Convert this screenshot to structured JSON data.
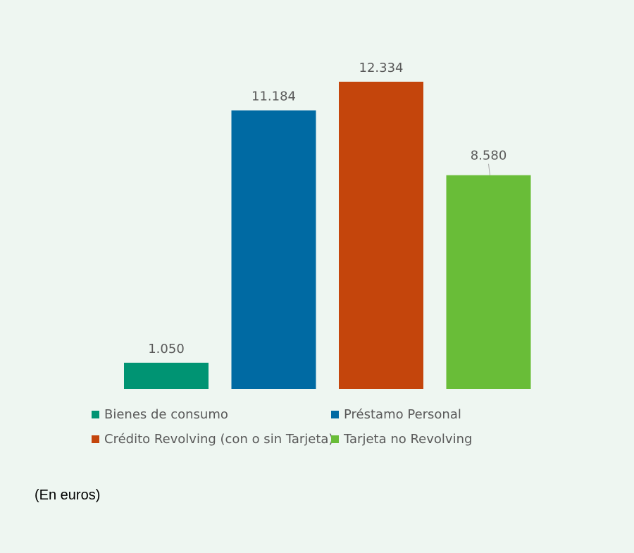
{
  "chart_data": {
    "type": "bar",
    "categories": [
      "Bienes de consumo",
      "Préstamo Personal",
      "Crédito Revolving (con o sin Tarjeta)",
      "Tarjeta no Revolving"
    ],
    "values": [
      1050,
      11184,
      12334,
      8580
    ],
    "value_labels": [
      "1.050",
      "11.184",
      "12.334",
      "8.580"
    ],
    "colors": [
      "#009473",
      "#006aa3",
      "#c4450c",
      "#69bd38"
    ],
    "title": "",
    "xlabel": "",
    "ylabel": "",
    "ylim": [
      0,
      12334
    ],
    "grid": false,
    "legend_position": "bottom"
  },
  "legend": {
    "items": [
      {
        "label": "Bienes de consumo",
        "color": "#009473"
      },
      {
        "label": "Préstamo Personal",
        "color": "#006aa3"
      },
      {
        "label": "Crédito Revolving (con o sin Tarjeta)",
        "color": "#c4450c"
      },
      {
        "label": "Tarjeta no Revolving",
        "color": "#69bd38"
      }
    ]
  },
  "note": "(En euros)"
}
